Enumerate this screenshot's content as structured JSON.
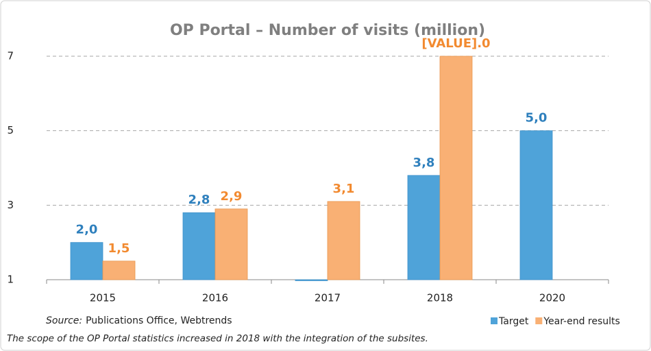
{
  "chart_data": {
    "type": "bar",
    "title": "OP Portal – Number of visits (million)",
    "categories": [
      "2015",
      "2016",
      "2017",
      "2018",
      "2020"
    ],
    "series": [
      {
        "name": "Target",
        "color": "#4fa3d9",
        "label_color": "#2f80bd",
        "values": [
          2.0,
          2.8,
          1.0,
          3.8,
          5.0
        ],
        "value_labels": [
          "2,0",
          "2,8",
          null,
          "3,8",
          "5,0"
        ]
      },
      {
        "name": "Year-end results",
        "color": "#f9b074",
        "label_color": "#f28a30",
        "values": [
          1.5,
          2.9,
          3.1,
          7.0,
          null
        ],
        "value_labels": [
          "1,5",
          "2,9",
          "3,1",
          "[VALUE].0",
          null
        ]
      }
    ],
    "ylim": [
      1,
      7
    ],
    "yticks": [
      1,
      3,
      5,
      7
    ],
    "grid": true,
    "source_label": "Source:",
    "source": "Publications Office, Webtrends",
    "footnote": "The scope of the OP Portal statistics increased in 2018 with the integration of the subsites."
  }
}
